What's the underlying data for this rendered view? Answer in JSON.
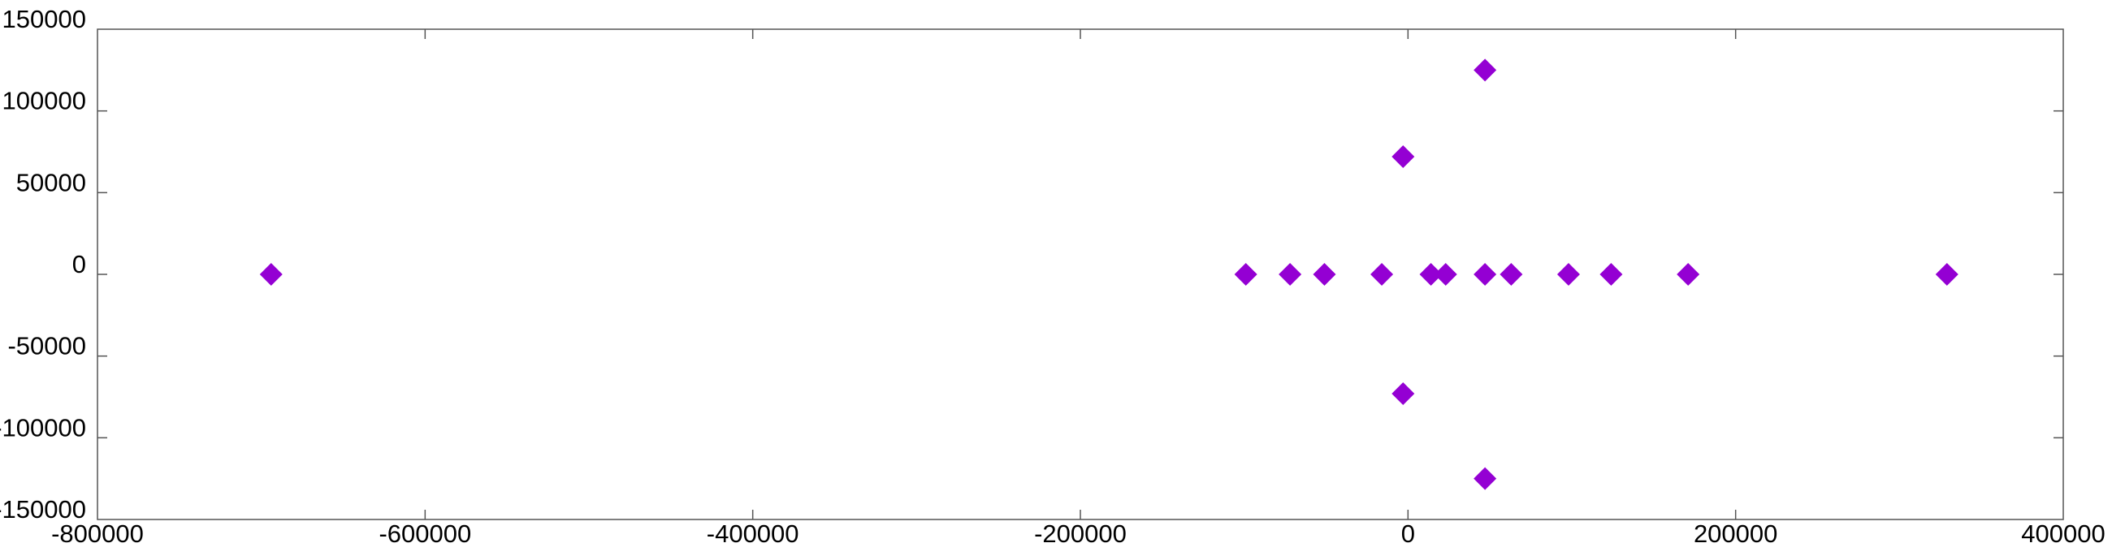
{
  "chart_data": {
    "type": "scatter",
    "title": "",
    "xlabel": "",
    "ylabel": "",
    "xlim": [
      -800000,
      400000
    ],
    "ylim": [
      -150000,
      150000
    ],
    "grid": false,
    "marker": "diamond",
    "color": "#9400D3",
    "x_ticks": [
      {
        "value": -800000,
        "label": "-800000"
      },
      {
        "value": -600000,
        "label": "-600000"
      },
      {
        "value": -400000,
        "label": "-400000"
      },
      {
        "value": -200000,
        "label": "-200000"
      },
      {
        "value": 0,
        "label": "0"
      },
      {
        "value": 200000,
        "label": "200000"
      },
      {
        "value": 400000,
        "label": "400000"
      }
    ],
    "y_ticks": [
      {
        "value": 150000,
        "label": "150000"
      },
      {
        "value": 100000,
        "label": "100000"
      },
      {
        "value": 50000,
        "label": "50000"
      },
      {
        "value": 0,
        "label": "0"
      },
      {
        "value": -50000,
        "label": "-50000"
      },
      {
        "value": -100000,
        "label": "-100000"
      },
      {
        "value": -150000,
        "label": "-150000"
      }
    ],
    "series": [
      {
        "points": [
          {
            "x": -694000,
            "y": 0
          },
          {
            "x": -99000,
            "y": 0
          },
          {
            "x": -72000,
            "y": 0
          },
          {
            "x": -51000,
            "y": 0
          },
          {
            "x": -16000,
            "y": 0
          },
          {
            "x": -3000,
            "y": 72000
          },
          {
            "x": -3000,
            "y": -73000
          },
          {
            "x": 14000,
            "y": 0
          },
          {
            "x": 23000,
            "y": 0
          },
          {
            "x": 47000,
            "y": 0
          },
          {
            "x": 47000,
            "y": 125000
          },
          {
            "x": 47000,
            "y": -125000
          },
          {
            "x": 63000,
            "y": 0
          },
          {
            "x": 98000,
            "y": 0
          },
          {
            "x": 124000,
            "y": 0
          },
          {
            "x": 171000,
            "y": 0
          },
          {
            "x": 329000,
            "y": 0
          }
        ]
      }
    ]
  }
}
